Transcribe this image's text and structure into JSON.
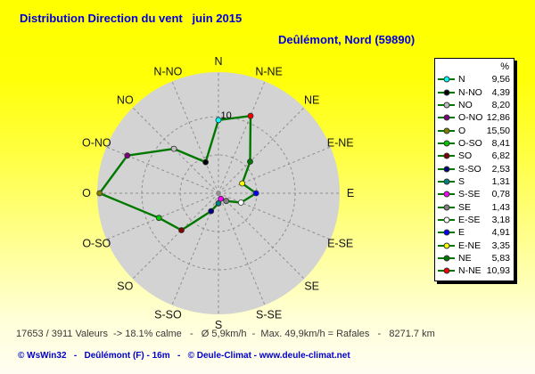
{
  "header": {
    "title": "Distribution Direction du vent   juin 2015",
    "subtitle": "Deûlémont, Nord (59890)",
    "title_color": "#0000dd"
  },
  "legend": {
    "header": "%",
    "line_color": "#007800",
    "items": [
      {
        "label": "N",
        "value": "9,56",
        "color": "#00ffff"
      },
      {
        "label": "N-NO",
        "value": "4,39",
        "color": "#000000"
      },
      {
        "label": "NO",
        "value": "8,20",
        "color": "#c0c0c0"
      },
      {
        "label": "O-NO",
        "value": "12,86",
        "color": "#800080"
      },
      {
        "label": "O",
        "value": "15,50",
        "color": "#808000"
      },
      {
        "label": "O-SO",
        "value": "8,41",
        "color": "#00cc00"
      },
      {
        "label": "SO",
        "value": "6,82",
        "color": "#800000"
      },
      {
        "label": "S-SO",
        "value": "2,53",
        "color": "#000080"
      },
      {
        "label": "S",
        "value": "1,31",
        "color": "#008080"
      },
      {
        "label": "S-SE",
        "value": "0,78",
        "color": "#ff00ff"
      },
      {
        "label": "SE",
        "value": "1,43",
        "color": "#808080"
      },
      {
        "label": "E-SE",
        "value": "3,18",
        "color": "#ffffff"
      },
      {
        "label": "E",
        "value": "4,91",
        "color": "#0000ff"
      },
      {
        "label": "E-NE",
        "value": "3,35",
        "color": "#ffff00"
      },
      {
        "label": "NE",
        "value": "5,83",
        "color": "#007800"
      },
      {
        "label": "N-NE",
        "value": "10,93",
        "color": "#ff0000"
      }
    ]
  },
  "chart_data": {
    "type": "radar",
    "title": "Distribution Direction du vent juin 2015",
    "subtitle": "Deûlémont, Nord (59890)",
    "units": "%",
    "direction_order_clockwise": [
      "N",
      "N-NE",
      "NE",
      "E-NE",
      "E",
      "E-SE",
      "SE",
      "S-SE",
      "S",
      "S-SO",
      "SO",
      "O-SO",
      "O",
      "O-NO",
      "NO",
      "N-NO"
    ],
    "categories": [
      "N",
      "N-NO",
      "NO",
      "O-NO",
      "O",
      "O-SO",
      "SO",
      "S-SO",
      "S",
      "S-SE",
      "SE",
      "E-SE",
      "E",
      "E-NE",
      "NE",
      "N-NE"
    ],
    "values": [
      9.56,
      4.39,
      8.2,
      12.86,
      15.5,
      8.41,
      6.82,
      2.53,
      1.31,
      0.78,
      1.43,
      3.18,
      4.91,
      3.35,
      5.83,
      10.93
    ],
    "r_axis": {
      "rings": [
        5,
        10
      ],
      "ring_label": "10",
      "labeled_ring": 10,
      "max": 16
    },
    "grid": "dashed",
    "legend_position": "right",
    "line_color": "#007800",
    "disc_color": "#d3d3d3",
    "grid_color": "#8f8f8f",
    "point_colors": {
      "N": "#00ffff",
      "N-NO": "#000000",
      "NO": "#c0c0c0",
      "O-NO": "#800080",
      "O": "#808000",
      "O-SO": "#00cc00",
      "SO": "#800000",
      "S-SO": "#000080",
      "S": "#008080",
      "S-SE": "#ff00ff",
      "SE": "#808080",
      "E-SE": "#ffffff",
      "E": "#0000ff",
      "E-NE": "#ffff00",
      "NE": "#007800",
      "N-NE": "#ff0000"
    }
  },
  "footer": {
    "stats": "17653 / 3911 Valeurs  -> 18.1% calme   -   Ø 5,9km/h  -  Max. 49,9km/h = Rafales   -   8271.7 km",
    "credits": "© WsWin32   -   Deûlémont (F) - 16m   -   © Deule-Climat - www.deule-climat.net"
  }
}
